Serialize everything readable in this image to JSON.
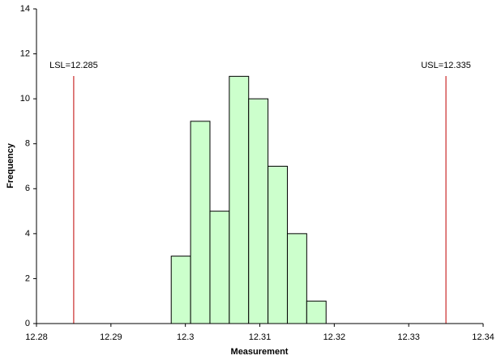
{
  "chart_data": {
    "type": "histogram",
    "x_label": "Measurement",
    "y_label": "Frequency",
    "bins": [
      12.2981,
      12.3007,
      12.3033,
      12.3059,
      12.3085,
      12.3111,
      12.3137,
      12.3163,
      12.3189
    ],
    "values": [
      3,
      9,
      5,
      11,
      10,
      7,
      4,
      1
    ],
    "color": "#ccffcc",
    "edge_color": "#000000",
    "xlim": [
      12.28,
      12.34
    ],
    "xticks": [
      12.28,
      12.29,
      12.3,
      12.31,
      12.32,
      12.33,
      12.34
    ],
    "ylim": [
      0,
      14
    ],
    "yticks": [
      0,
      2,
      4,
      6,
      8,
      10,
      12,
      14
    ],
    "grid": false,
    "spec_limits": [
      {
        "label": "LSL=12.285",
        "value": 12.285,
        "color": "#c00000"
      },
      {
        "label": "USL=12.335",
        "value": 12.335,
        "color": "#c00000"
      }
    ]
  }
}
